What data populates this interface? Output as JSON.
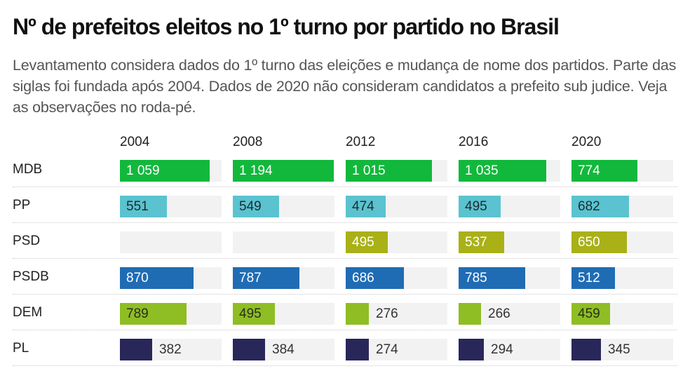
{
  "chart_data": {
    "type": "bar",
    "title": "Nº de prefeitos eleitos no 1º turno por partido no Brasil",
    "subtitle": "Levantamento considera dados do 1º turno das eleições e mudança de nome dos partidos. Parte das siglas foi fundada após 2004. Dados de 2020 não consideram candidatos a prefeito sub judice. Veja as observações no roda-pé.",
    "years": [
      "2004",
      "2008",
      "2012",
      "2016",
      "2020"
    ],
    "max": 1200,
    "series": [
      {
        "name": "MDB",
        "color": "#12b83c",
        "text_color": "#ffffff",
        "values": [
          1059,
          1194,
          1015,
          1035,
          774
        ],
        "labels": [
          "1 059",
          "1 194",
          "1 015",
          "1 035",
          "774"
        ]
      },
      {
        "name": "PP",
        "color": "#5ac3cf",
        "text_color": "#1d2b33",
        "values": [
          551,
          549,
          474,
          495,
          682
        ],
        "labels": [
          "551",
          "549",
          "474",
          "495",
          "682"
        ]
      },
      {
        "name": "PSD",
        "color": "#a9b117",
        "text_color": "#ffffff",
        "values": [
          null,
          null,
          495,
          537,
          650
        ],
        "labels": [
          "",
          "",
          "495",
          "537",
          "650"
        ]
      },
      {
        "name": "PSDB",
        "color": "#1f6cb5",
        "text_color": "#ffffff",
        "values": [
          870,
          787,
          686,
          785,
          512
        ],
        "labels": [
          "870",
          "787",
          "686",
          "785",
          "512"
        ]
      },
      {
        "name": "DEM",
        "color": "#8fbd24",
        "text_color": "#26301a",
        "values": [
          789,
          495,
          276,
          266,
          459
        ],
        "labels": [
          "789",
          "495",
          "276",
          "266",
          "459"
        ]
      },
      {
        "name": "PL",
        "color": "#29275a",
        "text_color": "#ffffff",
        "values": [
          382,
          384,
          274,
          294,
          345
        ],
        "labels": [
          "382",
          "384",
          "274",
          "294",
          "345"
        ]
      }
    ],
    "outside_label_color": "#333333"
  }
}
